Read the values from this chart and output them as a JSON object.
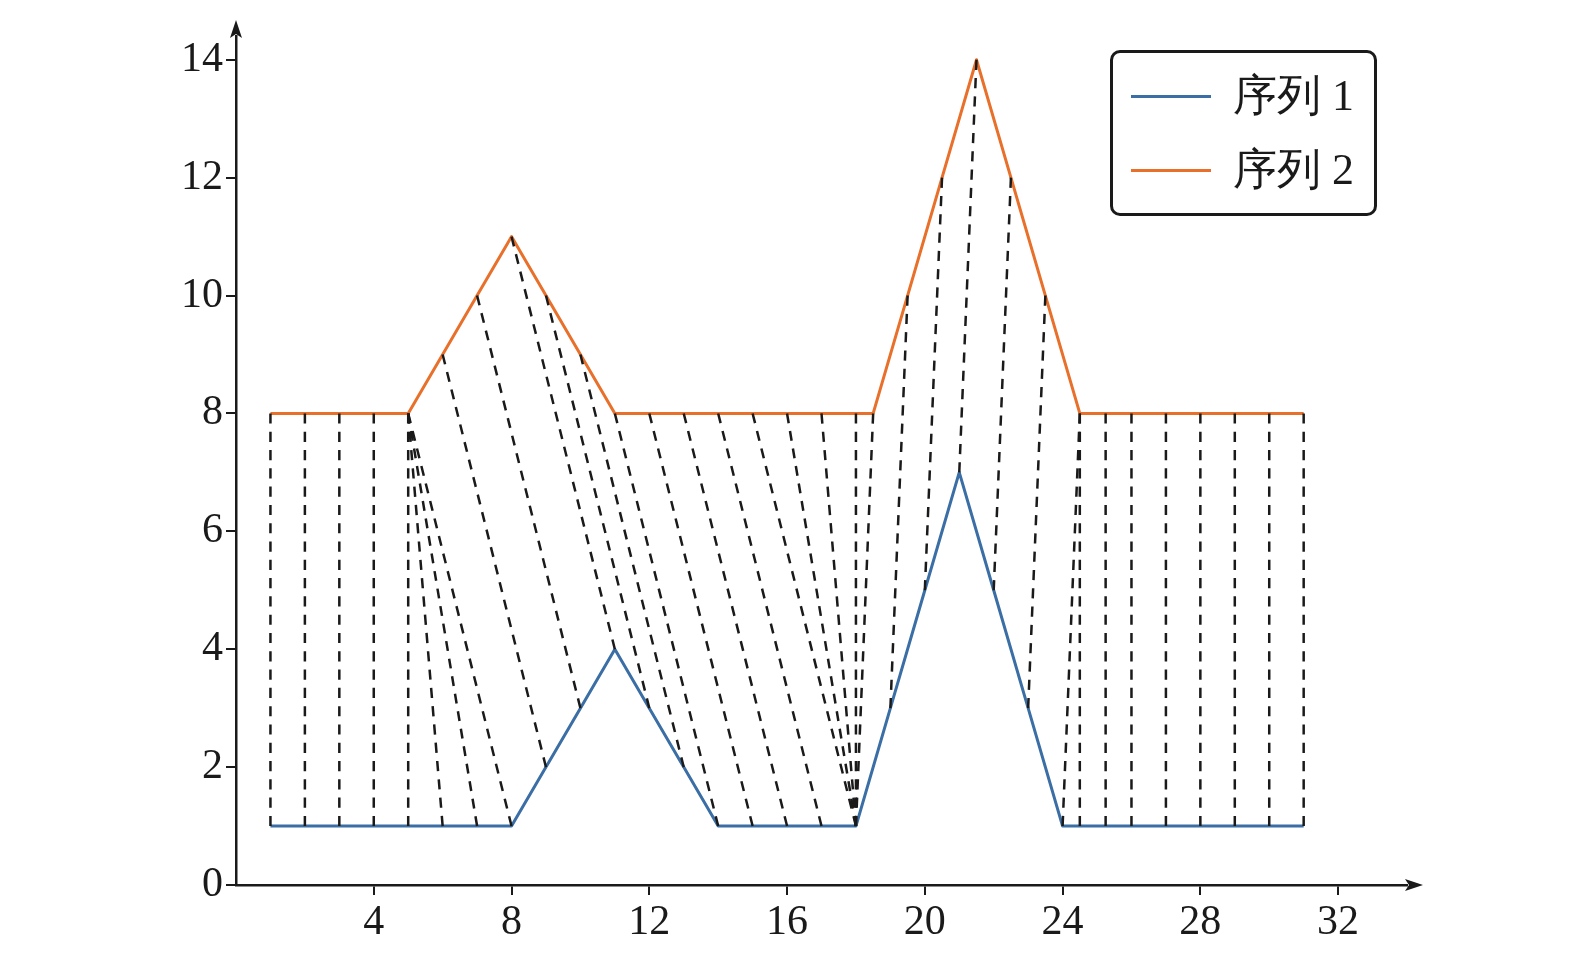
{
  "chart_data": {
    "type": "line",
    "xlim": [
      0,
      34
    ],
    "ylim": [
      0,
      14.4
    ],
    "xticks": [
      4,
      8,
      12,
      16,
      20,
      24,
      28,
      32
    ],
    "yticks": [
      0,
      2,
      4,
      6,
      8,
      10,
      12,
      14
    ],
    "grid": false,
    "legend": "top right",
    "marker": "none",
    "series": [
      {
        "name": "序列 1",
        "color": "#3a6ea5",
        "x": [
          1,
          2,
          3,
          4,
          5,
          6,
          7,
          8,
          9,
          10,
          11,
          12,
          13,
          14,
          15,
          16,
          17,
          18,
          19,
          20,
          21,
          22,
          23,
          24,
          24.5,
          25.25,
          26,
          27,
          28,
          29,
          30,
          31
        ],
        "values": [
          1,
          1,
          1,
          1,
          1,
          1,
          1,
          1,
          2,
          3,
          4,
          3,
          2,
          1,
          1,
          1,
          1,
          1,
          3,
          5,
          7,
          5,
          3,
          1,
          1,
          1,
          1,
          1,
          1,
          1,
          1,
          1
        ]
      },
      {
        "name": "序列 2",
        "color": "#e8702a",
        "x": [
          1,
          2,
          3,
          4,
          5,
          6,
          7,
          8,
          9,
          10,
          11,
          12,
          13,
          14,
          15,
          16,
          17,
          18,
          18.5,
          19.5,
          20.5,
          21.5,
          22.5,
          23.5,
          24.5,
          25.25,
          26,
          27,
          28,
          29,
          30,
          31
        ],
        "values": [
          8,
          8,
          8,
          8,
          8,
          9,
          10,
          11,
          10,
          9,
          8,
          8,
          8,
          8,
          8,
          8,
          8,
          8,
          8,
          10,
          12,
          14,
          12,
          10,
          8,
          8,
          8,
          8,
          8,
          8,
          8,
          8
        ]
      },
      {
        "color": "#1a1a1a",
        "line_style": "dashed",
        "x": [
          1,
          1
        ],
        "values": [
          8,
          1
        ]
      },
      {
        "color": "#1a1a1a",
        "line_style": "dashed",
        "x": [
          2,
          2
        ],
        "values": [
          8,
          1
        ]
      },
      {
        "color": "#1a1a1a",
        "line_style": "dashed",
        "x": [
          3,
          3
        ],
        "values": [
          8,
          1
        ]
      },
      {
        "color": "#1a1a1a",
        "line_style": "dashed",
        "x": [
          4,
          4
        ],
        "values": [
          8,
          1
        ]
      },
      {
        "color": "#1a1a1a",
        "line_style": "dashed",
        "x": [
          5,
          5
        ],
        "values": [
          8,
          1
        ]
      },
      {
        "color": "#1a1a1a",
        "line_style": "dashed",
        "x": [
          5,
          6
        ],
        "values": [
          8,
          1
        ]
      },
      {
        "color": "#1a1a1a",
        "line_style": "dashed",
        "x": [
          5,
          7
        ],
        "values": [
          8,
          1
        ]
      },
      {
        "color": "#1a1a1a",
        "line_style": "dashed",
        "x": [
          5,
          8
        ],
        "values": [
          8,
          1
        ]
      },
      {
        "color": "#1a1a1a",
        "line_style": "dashed",
        "x": [
          6,
          9
        ],
        "values": [
          9,
          2
        ]
      },
      {
        "color": "#1a1a1a",
        "line_style": "dashed",
        "x": [
          7,
          10
        ],
        "values": [
          10,
          3
        ]
      },
      {
        "color": "#1a1a1a",
        "line_style": "dashed",
        "x": [
          8,
          11
        ],
        "values": [
          11,
          4
        ]
      },
      {
        "color": "#1a1a1a",
        "line_style": "dashed",
        "x": [
          9,
          12
        ],
        "values": [
          10,
          3
        ]
      },
      {
        "color": "#1a1a1a",
        "line_style": "dashed",
        "x": [
          10,
          13
        ],
        "values": [
          9,
          2
        ]
      },
      {
        "color": "#1a1a1a",
        "line_style": "dashed",
        "x": [
          11,
          14
        ],
        "values": [
          8,
          1
        ]
      },
      {
        "color": "#1a1a1a",
        "line_style": "dashed",
        "x": [
          12,
          15
        ],
        "values": [
          8,
          1
        ]
      },
      {
        "color": "#1a1a1a",
        "line_style": "dashed",
        "x": [
          13,
          16
        ],
        "values": [
          8,
          1
        ]
      },
      {
        "color": "#1a1a1a",
        "line_style": "dashed",
        "x": [
          14,
          17
        ],
        "values": [
          8,
          1
        ]
      },
      {
        "color": "#1a1a1a",
        "line_style": "dashed",
        "x": [
          15,
          18
        ],
        "values": [
          8,
          1
        ]
      },
      {
        "color": "#1a1a1a",
        "line_style": "dashed",
        "x": [
          16,
          18
        ],
        "values": [
          8,
          1
        ]
      },
      {
        "color": "#1a1a1a",
        "line_style": "dashed",
        "x": [
          17,
          18
        ],
        "values": [
          8,
          1
        ]
      },
      {
        "color": "#1a1a1a",
        "line_style": "dashed",
        "x": [
          18,
          18
        ],
        "values": [
          8,
          1
        ]
      },
      {
        "color": "#1a1a1a",
        "line_style": "dashed",
        "x": [
          18.5,
          18
        ],
        "values": [
          8,
          1
        ]
      },
      {
        "color": "#1a1a1a",
        "line_style": "dashed",
        "x": [
          19.5,
          19
        ],
        "values": [
          10,
          3
        ]
      },
      {
        "color": "#1a1a1a",
        "line_style": "dashed",
        "x": [
          20.5,
          20
        ],
        "values": [
          12,
          5
        ]
      },
      {
        "color": "#1a1a1a",
        "line_style": "dashed",
        "x": [
          21.5,
          21
        ],
        "values": [
          14,
          7
        ]
      },
      {
        "color": "#1a1a1a",
        "line_style": "dashed",
        "x": [
          22.5,
          22
        ],
        "values": [
          12,
          5
        ]
      },
      {
        "color": "#1a1a1a",
        "line_style": "dashed",
        "x": [
          23.5,
          23
        ],
        "values": [
          10,
          3
        ]
      },
      {
        "color": "#1a1a1a",
        "line_style": "dashed",
        "x": [
          24.5,
          24
        ],
        "values": [
          8,
          1
        ]
      },
      {
        "color": "#1a1a1a",
        "line_style": "dashed",
        "x": [
          24.5,
          24.5
        ],
        "values": [
          8,
          1
        ]
      },
      {
        "color": "#1a1a1a",
        "line_style": "dashed",
        "x": [
          25.25,
          25.25
        ],
        "values": [
          8,
          1
        ]
      },
      {
        "color": "#1a1a1a",
        "line_style": "dashed",
        "x": [
          26,
          26
        ],
        "values": [
          8,
          1
        ]
      },
      {
        "color": "#1a1a1a",
        "line_style": "dashed",
        "x": [
          27,
          27
        ],
        "values": [
          8,
          1
        ]
      },
      {
        "color": "#1a1a1a",
        "line_style": "dashed",
        "x": [
          28,
          28
        ],
        "values": [
          8,
          1
        ]
      },
      {
        "color": "#1a1a1a",
        "line_style": "dashed",
        "x": [
          29,
          29
        ],
        "values": [
          8,
          1
        ]
      },
      {
        "color": "#1a1a1a",
        "line_style": "dashed",
        "x": [
          30,
          30
        ],
        "values": [
          8,
          1
        ]
      },
      {
        "color": "#1a1a1a",
        "line_style": "dashed",
        "x": [
          31,
          31
        ],
        "values": [
          8,
          1
        ]
      }
    ]
  }
}
